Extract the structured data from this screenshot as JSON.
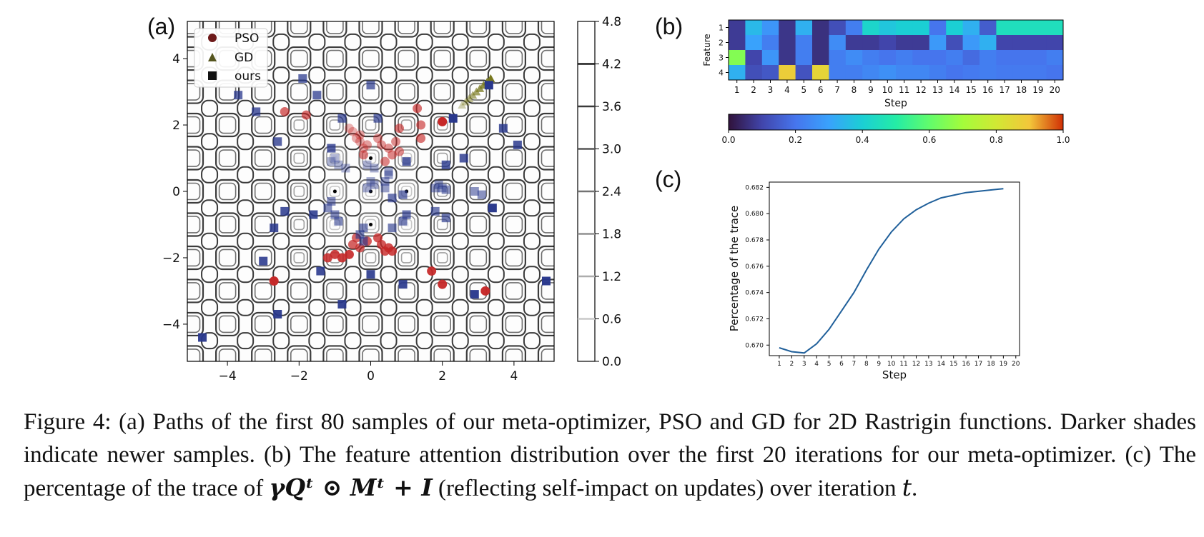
{
  "panels": {
    "a": "(a)",
    "b": "(b)",
    "c": "(c)"
  },
  "chart_data": [
    {
      "panel": "a",
      "type": "scatter",
      "background": "contour",
      "title": "",
      "xlabel": "",
      "ylabel": "",
      "xlim": [
        -5.12,
        5.12
      ],
      "ylim": [
        -5.12,
        5.12
      ],
      "xticks": [
        "−4",
        "−2",
        "0",
        "2",
        "4"
      ],
      "yticks": [
        "4",
        "2",
        "0",
        "−2",
        "−4"
      ],
      "legend": {
        "placement": "top-left",
        "entries": [
          "PSO",
          "GD",
          "ours"
        ]
      },
      "colorbar": {
        "ticks": [
          "4.8",
          "4.2",
          "3.6",
          "3.0",
          "2.4",
          "1.8",
          "1.2",
          "0.6",
          "0.0"
        ]
      },
      "series": [
        {
          "name": "PSO",
          "marker": "circle",
          "color": "#c62828",
          "points": [
            [
              -0.6,
              1.9
            ],
            [
              -0.5,
              1.8
            ],
            [
              -0.4,
              1.6
            ],
            [
              -0.3,
              1.5
            ],
            [
              -0.2,
              1.3
            ],
            [
              -0.3,
              1.7
            ],
            [
              -0.1,
              1.4
            ],
            [
              0.2,
              1.6
            ],
            [
              0.3,
              1.4
            ],
            [
              0.5,
              1.3
            ],
            [
              0.7,
              1.5
            ],
            [
              0.8,
              1.2
            ],
            [
              0.6,
              1.1
            ],
            [
              0.4,
              0.9
            ],
            [
              -0.2,
              1.1
            ],
            [
              0.8,
              1.9
            ],
            [
              1.4,
              2.0
            ],
            [
              1.4,
              1.6
            ],
            [
              1.3,
              2.5
            ],
            [
              -1.8,
              2.3
            ],
            [
              -2.4,
              2.4
            ],
            [
              -0.4,
              -1.4
            ],
            [
              -0.5,
              -1.6
            ],
            [
              -0.3,
              -1.7
            ],
            [
              -0.1,
              -1.5
            ],
            [
              0.2,
              -1.4
            ],
            [
              0.3,
              -1.6
            ],
            [
              0.4,
              -1.8
            ],
            [
              0.5,
              -1.7
            ],
            [
              0.6,
              -1.8
            ],
            [
              -1.2,
              -2.0
            ],
            [
              -1.0,
              -1.9
            ],
            [
              -0.8,
              -2.0
            ],
            [
              -0.6,
              -1.9
            ],
            [
              1.7,
              -2.4
            ],
            [
              2.0,
              -2.8
            ],
            [
              3.2,
              -3.0
            ],
            [
              -2.7,
              -2.7
            ],
            [
              2.0,
              2.1
            ]
          ]
        },
        {
          "name": "GD",
          "marker": "triangle",
          "color": "#6b6b1a",
          "points": [
            [
              2.55,
              2.6
            ],
            [
              2.65,
              2.7
            ],
            [
              2.75,
              2.8
            ],
            [
              2.85,
              2.9
            ],
            [
              2.95,
              3.0
            ],
            [
              3.05,
              3.1
            ],
            [
              3.15,
              3.2
            ],
            [
              3.25,
              3.3
            ],
            [
              3.35,
              3.4
            ]
          ]
        },
        {
          "name": "ours",
          "marker": "square",
          "color": "#2b3a8c",
          "points": [
            [
              -1.0,
              1.0
            ],
            [
              -0.9,
              0.8
            ],
            [
              -0.7,
              0.7
            ],
            [
              -1.1,
              0.9
            ],
            [
              -0.1,
              0.8
            ],
            [
              0.1,
              0.7
            ],
            [
              0.0,
              0.3
            ],
            [
              -0.1,
              0.1
            ],
            [
              0.1,
              0.2
            ],
            [
              0.5,
              0.6
            ],
            [
              0.5,
              0.5
            ],
            [
              0.4,
              0.3
            ],
            [
              0.4,
              0.1
            ],
            [
              1.8,
              0.1
            ],
            [
              1.9,
              0.2
            ],
            [
              2.0,
              0.1
            ],
            [
              2.1,
              0.05
            ],
            [
              2.9,
              0.0
            ],
            [
              3.1,
              -0.1
            ],
            [
              -1.1,
              -0.3
            ],
            [
              -1.2,
              -0.5
            ],
            [
              -1.0,
              -0.7
            ],
            [
              -0.9,
              -0.9
            ],
            [
              -0.2,
              -1.1
            ],
            [
              -0.3,
              -1.3
            ],
            [
              -0.2,
              -1.5
            ],
            [
              0.6,
              -1.1
            ],
            [
              0.9,
              -0.9
            ],
            [
              1.8,
              -0.6
            ],
            [
              2.1,
              -0.8
            ],
            [
              0.9,
              -0.1
            ],
            [
              0.6,
              -0.2
            ],
            [
              1.0,
              -0.7
            ],
            [
              0.2,
              2.2
            ],
            [
              0.0,
              3.2
            ],
            [
              -0.8,
              2.2
            ],
            [
              -1.9,
              3.4
            ],
            [
              -1.5,
              2.9
            ],
            [
              -3.7,
              2.9
            ],
            [
              -3.2,
              2.4
            ],
            [
              -2.6,
              1.5
            ],
            [
              -1.1,
              1.3
            ],
            [
              1.0,
              0.9
            ],
            [
              2.1,
              0.8
            ],
            [
              2.6,
              1.0
            ],
            [
              3.7,
              1.9
            ],
            [
              4.1,
              1.4
            ],
            [
              -2.4,
              -0.6
            ],
            [
              -2.7,
              -1.1
            ],
            [
              -1.6,
              -0.7
            ],
            [
              -3.0,
              -2.1
            ],
            [
              -1.4,
              -2.4
            ],
            [
              0.0,
              -2.5
            ],
            [
              0.9,
              -2.8
            ],
            [
              -0.8,
              -3.4
            ],
            [
              -2.6,
              -3.7
            ],
            [
              -4.7,
              -4.4
            ],
            [
              2.9,
              -3.1
            ],
            [
              4.9,
              -2.7
            ],
            [
              3.4,
              -0.5
            ],
            [
              2.3,
              2.2
            ],
            [
              3.3,
              3.2
            ]
          ]
        }
      ]
    },
    {
      "panel": "b",
      "type": "heatmap",
      "title": "",
      "xlabel": "Step",
      "ylabel": "Feature",
      "x": [
        "1",
        "2",
        "3",
        "4",
        "5",
        "6",
        "7",
        "8",
        "9",
        "10",
        "11",
        "12",
        "13",
        "14",
        "15",
        "16",
        "17",
        "18",
        "19",
        "20"
      ],
      "y": [
        "1",
        "2",
        "3",
        "4"
      ],
      "colorbar_ticks": [
        "0.0",
        "0.2",
        "0.4",
        "0.6",
        "0.8",
        "1.0"
      ],
      "values": [
        [
          0.08,
          0.35,
          0.27,
          0.07,
          0.33,
          0.06,
          0.12,
          0.22,
          0.42,
          0.38,
          0.4,
          0.4,
          0.2,
          0.4,
          0.33,
          0.15,
          0.45,
          0.45,
          0.45,
          0.45
        ],
        [
          0.08,
          0.3,
          0.22,
          0.07,
          0.22,
          0.06,
          0.25,
          0.08,
          0.08,
          0.1,
          0.08,
          0.08,
          0.28,
          0.12,
          0.28,
          0.33,
          0.1,
          0.1,
          0.1,
          0.1
        ],
        [
          0.65,
          0.1,
          0.27,
          0.07,
          0.22,
          0.06,
          0.22,
          0.25,
          0.22,
          0.2,
          0.22,
          0.2,
          0.2,
          0.22,
          0.18,
          0.22,
          0.2,
          0.2,
          0.2,
          0.22
        ],
        [
          0.33,
          0.12,
          0.14,
          0.88,
          0.13,
          0.86,
          0.22,
          0.22,
          0.24,
          0.26,
          0.24,
          0.24,
          0.22,
          0.2,
          0.21,
          0.22,
          0.21,
          0.21,
          0.21,
          0.2
        ]
      ]
    },
    {
      "panel": "c",
      "type": "line",
      "title": "",
      "xlabel": "Step",
      "ylabel": "Percentage of the trace",
      "xticks": [
        "1",
        "2",
        "3",
        "4",
        "5",
        "6",
        "7",
        "8",
        "9",
        "10",
        "11",
        "12",
        "13",
        "14",
        "15",
        "16",
        "17",
        "18",
        "19",
        "20"
      ],
      "yticks": [
        "0.682",
        "0.680",
        "0.678",
        "0.676",
        "0.674",
        "0.672",
        "0.670"
      ],
      "xlim": [
        0.2,
        20.3
      ],
      "ylim": [
        0.6692,
        0.6824
      ],
      "grid": false,
      "series": [
        {
          "x": [
            1,
            2,
            3,
            4,
            5,
            6,
            7,
            8,
            9,
            10,
            11,
            12,
            13,
            14,
            15,
            16,
            17,
            18,
            19
          ],
          "y": [
            0.6698,
            0.6695,
            0.6694,
            0.6701,
            0.6712,
            0.6726,
            0.674,
            0.6757,
            0.6773,
            0.6786,
            0.6796,
            0.6803,
            0.6808,
            0.6812,
            0.6814,
            0.6816,
            0.6817,
            0.6818,
            0.6819
          ]
        }
      ]
    }
  ],
  "caption": {
    "part1": "Figure 4: (a) Paths of the first 80 samples of our meta-optimizer, PSO and GD for 2D Rastrigin functions. Darker shades indicate newer samples. (b) The feature attention distribution over the first 20 iterations for our meta-optimizer. (c) The percentage of the trace of ",
    "math": "γQᵗ ⊙ Mᵗ + I",
    "part2": " (reflecting self-impact on updates) over iteration ",
    "t": "t",
    "end": "."
  }
}
